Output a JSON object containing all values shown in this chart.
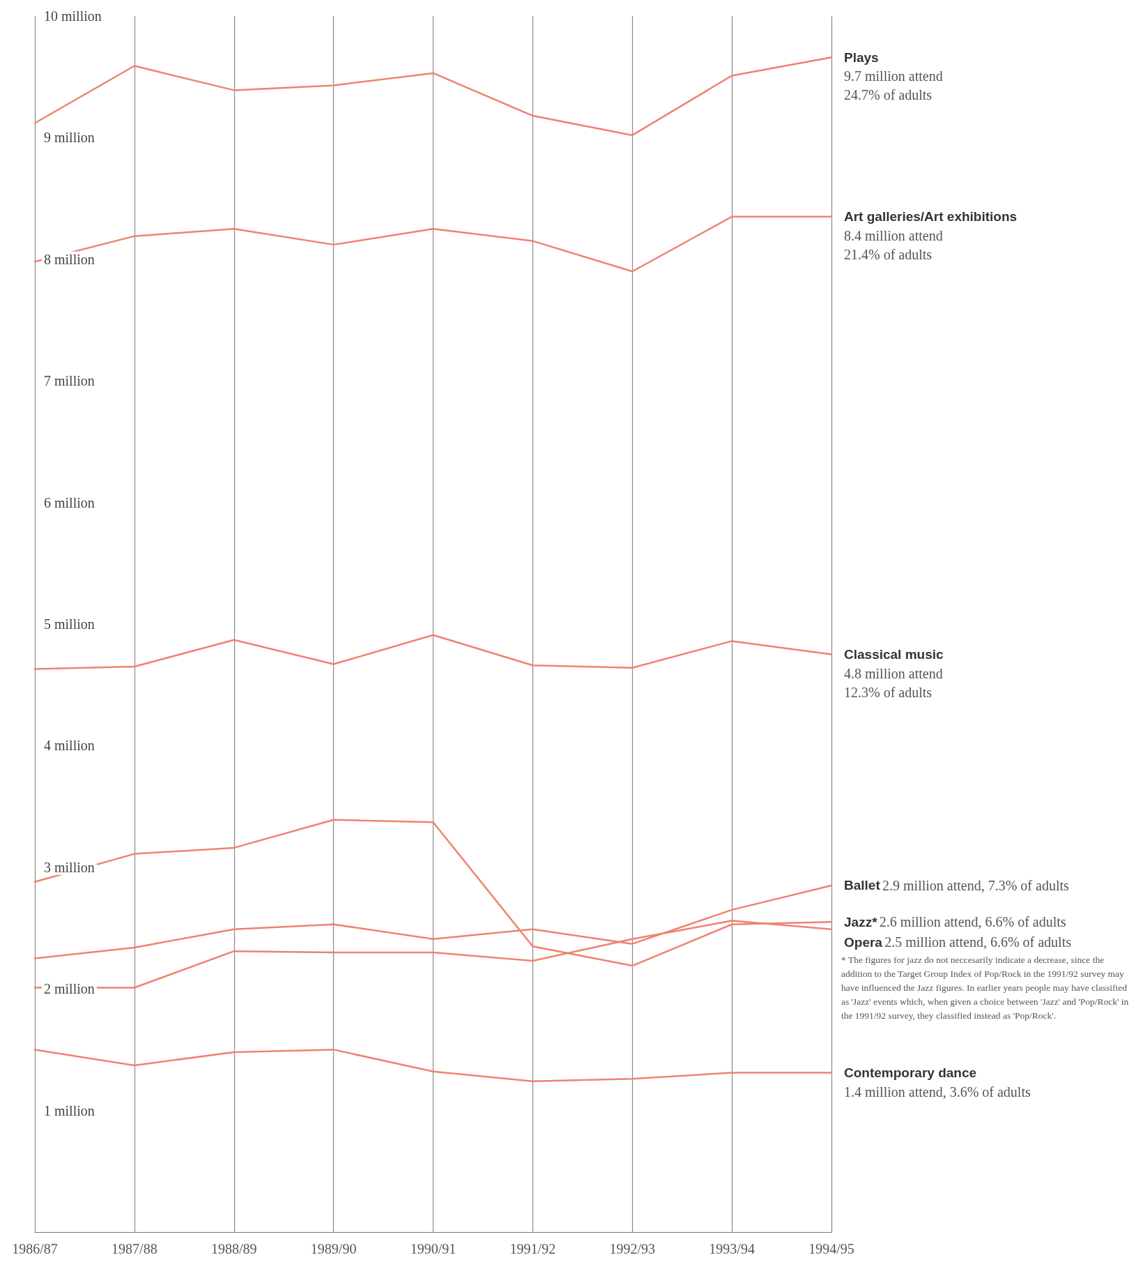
{
  "chart_data": {
    "type": "line",
    "categories": [
      "1986/87",
      "1987/88",
      "1988/89",
      "1989/90",
      "1990/91",
      "1991/92",
      "1992/93",
      "1993/94",
      "1994/95"
    ],
    "series": [
      {
        "name": "Plays",
        "color": "#ef8270",
        "values": [
          9.12,
          9.59,
          9.39,
          9.43,
          9.53,
          9.18,
          9.02,
          9.51,
          9.66
        ]
      },
      {
        "name": "Art galleries/Art exhibitions",
        "color": "#ef8270",
        "values": [
          7.98,
          8.19,
          8.25,
          8.12,
          8.25,
          8.15,
          7.9,
          8.35,
          8.35
        ]
      },
      {
        "name": "Classical music",
        "color": "#ef8270",
        "values": [
          4.63,
          4.65,
          4.87,
          4.67,
          4.91,
          4.66,
          4.64,
          4.86,
          4.75
        ]
      },
      {
        "name": "Ballet",
        "color": "#ef8270",
        "values": [
          2.25,
          2.34,
          2.49,
          2.53,
          2.41,
          2.49,
          2.37,
          2.65,
          2.85
        ]
      },
      {
        "name": "Jazz*",
        "color": "#ef8270",
        "values": [
          2.88,
          3.11,
          3.16,
          3.39,
          3.37,
          2.35,
          2.19,
          2.53,
          2.55
        ]
      },
      {
        "name": "Opera",
        "color": "#ef8270",
        "values": [
          2.01,
          2.01,
          2.31,
          2.3,
          2.3,
          2.23,
          2.41,
          2.56,
          2.49
        ]
      },
      {
        "name": "Contemporary dance",
        "color": "#ef8270",
        "values": [
          1.5,
          1.37,
          1.48,
          1.5,
          1.32,
          1.24,
          1.26,
          1.31,
          1.31
        ]
      }
    ],
    "ylim": [
      0,
      10
    ],
    "yticks": [
      {
        "value": 1,
        "label": "1 million"
      },
      {
        "value": 2,
        "label": "2 million"
      },
      {
        "value": 3,
        "label": "3 million"
      },
      {
        "value": 4,
        "label": "4 million"
      },
      {
        "value": 5,
        "label": "5 million"
      },
      {
        "value": 6,
        "label": "6 million"
      },
      {
        "value": 7,
        "label": "7 million"
      },
      {
        "value": 8,
        "label": "8 million"
      },
      {
        "value": 9,
        "label": "9 million"
      },
      {
        "value": 10,
        "label": "10 million"
      }
    ],
    "grid": "x",
    "marker": "none",
    "line_style": "solid",
    "annotations": [
      "9.7 million attend\n24.7% of adults",
      "8.4 million attend\n21.4% of adults",
      "4.8 million attend\n12.3% of adults",
      "2.9 million attend, 7.3% of adults",
      "2.6 million attend, 6.6% of adults",
      "2.5 million attend, 6.6% of adults",
      "1.4 million attend, 3.6% of adults",
      "* The figures for jazz do not neccesarily indicate a decrease, since the addition to the Target Group Index of Pop/Rock in the 1991/92 survey may have influenced the Jazz figures. In earlier years people may have classified as 'Jazz' events which, when given a choice between 'Jazz' and 'Pop/Rock' in the 1991/92 survey, they classified instead as 'Pop/Rock'."
    ]
  }
}
